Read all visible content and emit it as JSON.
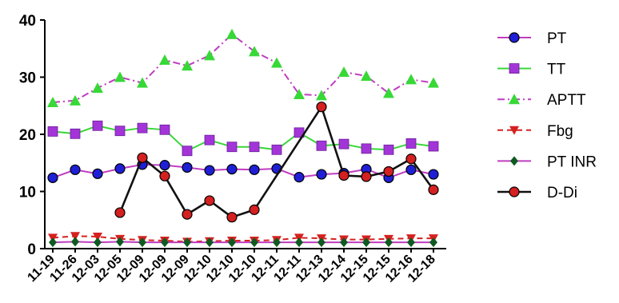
{
  "chart_data": {
    "type": "line",
    "title": "",
    "xlabel": "",
    "ylabel": "",
    "ylim": [
      0,
      40
    ],
    "yticks": [
      0,
      10,
      20,
      30,
      40
    ],
    "grid": false,
    "legend_position": "right",
    "categories": [
      "11-19",
      "11-26",
      "12-03",
      "12-05",
      "12-09",
      "12-09",
      "12-09",
      "12-10",
      "12-10",
      "12-10",
      "12-11",
      "12-11",
      "12-13",
      "12-14",
      "12-15",
      "12-15",
      "12-16",
      "12-18"
    ],
    "series": [
      {
        "name": "PT",
        "color": "#1f1fd6",
        "line_color": "#c03cc0",
        "dash": "solid",
        "marker": "circle",
        "values": [
          12.4,
          13.8,
          13.1,
          14.0,
          14.7,
          14.6,
          14.2,
          13.7,
          13.9,
          13.8,
          14.0,
          12.5,
          13.0,
          13.2,
          13.9,
          12.4,
          13.8,
          13.0
        ]
      },
      {
        "name": "TT",
        "color": "#a335d8",
        "line_color": "#3ad63a",
        "dash": "solid",
        "marker": "square",
        "values": [
          20.5,
          20.1,
          21.5,
          20.6,
          21.1,
          20.8,
          17.1,
          19.0,
          17.8,
          17.8,
          17.3,
          20.3,
          18.0,
          18.3,
          17.5,
          17.3,
          18.4,
          17.9
        ]
      },
      {
        "name": "APTT",
        "color": "#37d837",
        "line_color": "#c03cc0",
        "dash": "dashdot",
        "marker": "triangle-up",
        "values": [
          25.6,
          25.9,
          28.1,
          30.0,
          29.0,
          33.0,
          32.0,
          33.8,
          37.5,
          34.5,
          32.5,
          27.0,
          26.8,
          30.9,
          30.2,
          27.2,
          29.6,
          29.0
        ]
      },
      {
        "name": "Fbg",
        "color": "#d62020",
        "line_color": "#d62020",
        "dash": "dashed",
        "marker": "triangle-down",
        "values": [
          1.9,
          2.2,
          2.1,
          1.7,
          1.5,
          1.4,
          1.2,
          1.3,
          1.4,
          1.4,
          1.5,
          1.9,
          1.8,
          1.6,
          1.6,
          1.7,
          1.8,
          1.8
        ]
      },
      {
        "name": "PT INR",
        "color": "#0e5a20",
        "line_color": "#c03cc0",
        "dash": "solid",
        "marker": "diamond",
        "values": [
          1.1,
          1.2,
          1.1,
          1.2,
          1.1,
          1.1,
          1.1,
          1.1,
          1.1,
          1.1,
          1.1,
          1.1,
          1.1,
          1.1,
          1.1,
          1.1,
          1.1,
          1.1
        ]
      },
      {
        "name": "D-Di",
        "color": "#d42020",
        "line_color": "#111111",
        "dash": "solid",
        "marker": "circle",
        "values": [
          null,
          null,
          null,
          6.3,
          15.9,
          12.7,
          6.0,
          8.4,
          5.5,
          6.8,
          null,
          null,
          24.8,
          12.8,
          12.6,
          13.5,
          15.7,
          10.3
        ]
      }
    ]
  }
}
